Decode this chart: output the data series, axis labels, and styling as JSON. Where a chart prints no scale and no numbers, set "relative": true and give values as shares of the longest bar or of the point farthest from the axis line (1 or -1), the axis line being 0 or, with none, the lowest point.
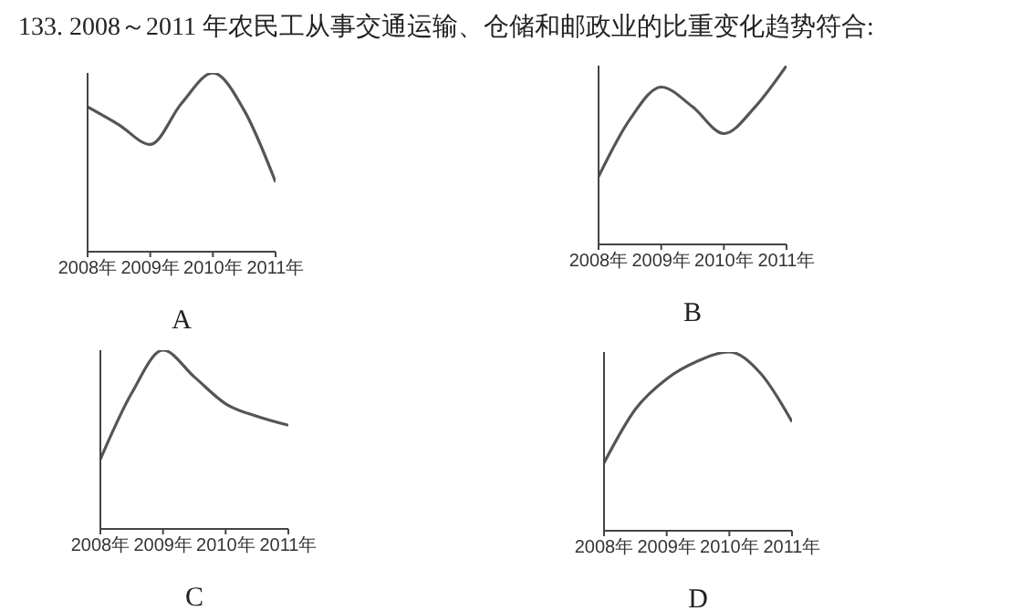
{
  "chart_data": [
    {
      "type": "line",
      "title": "133. 2008～2011 年农民工从事交通运输、仓储和邮政业的比重变化趋势符合:",
      "xlabel": "A",
      "relative": true,
      "tick_labels": "x",
      "x": [
        2008,
        2008.5,
        2009,
        2009.5,
        2010,
        2010.5,
        2011
      ],
      "xlim": [
        2008,
        2011
      ],
      "xticks": [
        {
          "value": 2008,
          "label": "2008年"
        },
        {
          "value": 2009,
          "label": "2009年"
        },
        {
          "value": 2010,
          "label": "2010年"
        },
        {
          "value": 2011,
          "label": "2011年"
        }
      ],
      "series": [
        {
          "color": "#555555",
          "values": [
            0.81,
            0.71,
            0.6,
            0.83,
            1,
            0.79,
            0.39
          ]
        }
      ]
    },
    {
      "type": "line",
      "xlabel": "B",
      "relative": true,
      "tick_labels": "x",
      "x": [
        2008,
        2008.5,
        2009,
        2009.5,
        2010,
        2010.5,
        2011
      ],
      "xlim": [
        2008,
        2011
      ],
      "xticks": [
        {
          "value": 2008,
          "label": "2008年"
        },
        {
          "value": 2009,
          "label": "2009年"
        },
        {
          "value": 2010,
          "label": "2010年"
        },
        {
          "value": 2011,
          "label": "2011年"
        }
      ],
      "series": [
        {
          "color": "#555555",
          "values": [
            0.38,
            0.7,
            0.88,
            0.77,
            0.62,
            0.77,
            1
          ]
        }
      ]
    },
    {
      "type": "line",
      "xlabel": "C",
      "relative": true,
      "tick_labels": "x",
      "x": [
        2008,
        2008.5,
        2009,
        2009.5,
        2010,
        2010.5,
        2011
      ],
      "xlim": [
        2008,
        2011
      ],
      "xticks": [
        {
          "value": 2008,
          "label": "2008年"
        },
        {
          "value": 2009,
          "label": "2009年"
        },
        {
          "value": 2010,
          "label": "2010年"
        },
        {
          "value": 2011,
          "label": "2011年"
        }
      ],
      "series": [
        {
          "color": "#555555",
          "values": [
            0.39,
            0.76,
            1,
            0.85,
            0.7,
            0.63,
            0.58
          ]
        }
      ]
    },
    {
      "type": "line",
      "xlabel": "D",
      "relative": true,
      "tick_labels": "x",
      "x": [
        2008,
        2008.5,
        2009,
        2009.5,
        2010,
        2010.5,
        2011
      ],
      "xlim": [
        2008,
        2011
      ],
      "xticks": [
        {
          "value": 2008,
          "label": "2008年"
        },
        {
          "value": 2009,
          "label": "2009年"
        },
        {
          "value": 2010,
          "label": "2010年"
        },
        {
          "value": 2011,
          "label": "2011年"
        }
      ],
      "series": [
        {
          "color": "#555555",
          "values": [
            0.38,
            0.68,
            0.85,
            0.95,
            1,
            0.88,
            0.61
          ]
        }
      ]
    }
  ]
}
